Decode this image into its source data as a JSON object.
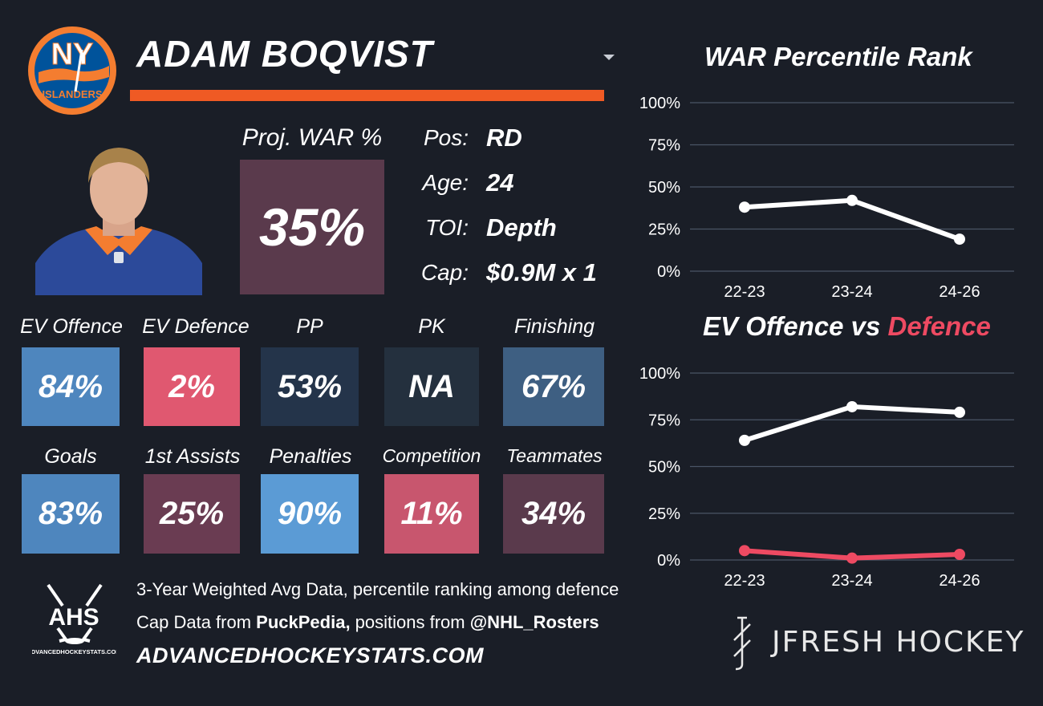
{
  "logo": {
    "icon": "ny-islanders-logo",
    "text_top": "NY",
    "text_bottom": "ISLANDERS",
    "colors": {
      "circle": "#f47d30",
      "inner": "#00539b"
    }
  },
  "player": {
    "name": "ADAM BOQVIST",
    "headshot_icon": "player-headshot"
  },
  "projection": {
    "label": "Proj. WAR %",
    "value": "35%"
  },
  "info": [
    {
      "label": "Pos:",
      "value": "RD"
    },
    {
      "label": "Age:",
      "value": "24"
    },
    {
      "label": "TOI:",
      "value": "Depth"
    },
    {
      "label": "Cap:",
      "value": "$0.9M x 1"
    }
  ],
  "metrics": [
    {
      "label": "EV Offence",
      "value": "84%",
      "color": "#4e86be"
    },
    {
      "label": "EV Defence",
      "value": "2%",
      "color": "#e05870"
    },
    {
      "label": "PP",
      "value": "53%",
      "color": "#24344a"
    },
    {
      "label": "PK",
      "value": "NA",
      "color": "#24303e"
    },
    {
      "label": "Finishing",
      "value": "67%",
      "color": "#3e5f82"
    },
    {
      "label": "Goals",
      "value": "83%",
      "color": "#4e86be"
    },
    {
      "label": "1st Assists",
      "value": "25%",
      "color": "#6a3c52"
    },
    {
      "label": "Penalties",
      "value": "90%",
      "color": "#5b9bd5"
    },
    {
      "label": "Competition",
      "value": "11%",
      "color": "#c8566e"
    },
    {
      "label": "Teammates",
      "value": "34%",
      "color": "#5a3a4c"
    }
  ],
  "footer": {
    "line1": "3-Year Weighted Avg Data, percentile ranking among defence",
    "line2_prefix": "Cap Data from ",
    "line2_bold1": "PuckPedia,",
    "line2_mid": " positions from ",
    "line2_bold2": "@NHL_Rosters",
    "website": "ADVANCEDHOCKEYSTATS.COM",
    "ahs_logo_text": "AHS",
    "ahs_logo_subtext": "ADVANCEDHOCKEYSTATS.COM",
    "brand": "JFRESH HOCKEY"
  },
  "chart_titles": {
    "war": "WAR Percentile Rank",
    "ev_part1": "EV Offence vs ",
    "ev_part2": "Defence"
  },
  "colors": {
    "background": "#1a1e27",
    "accent": "#ef5a24",
    "white_line": "#ffffff",
    "red_line": "#ee4a62",
    "grid": "#4a5566"
  },
  "chart_data": [
    {
      "type": "line",
      "title": "WAR Percentile Rank",
      "categories": [
        "22-23",
        "23-24",
        "24-26"
      ],
      "series": [
        {
          "values": [
            38,
            42,
            19
          ]
        }
      ],
      "yticks": [
        "0%",
        "25%",
        "50%",
        "75%",
        "100%"
      ],
      "ylim": [
        0,
        100
      ],
      "grid": true
    },
    {
      "type": "line",
      "title": "EV Offence vs Defence",
      "categories": [
        "22-23",
        "23-24",
        "24-26"
      ],
      "series": [
        {
          "values": [
            64,
            82,
            79
          ],
          "color": "#ffffff"
        },
        {
          "values": [
            5,
            1,
            3
          ],
          "color": "#ee4a62"
        }
      ],
      "yticks": [
        "0%",
        "25%",
        "50%",
        "75%",
        "100%"
      ],
      "ylim": [
        0,
        100
      ],
      "grid": true
    }
  ]
}
